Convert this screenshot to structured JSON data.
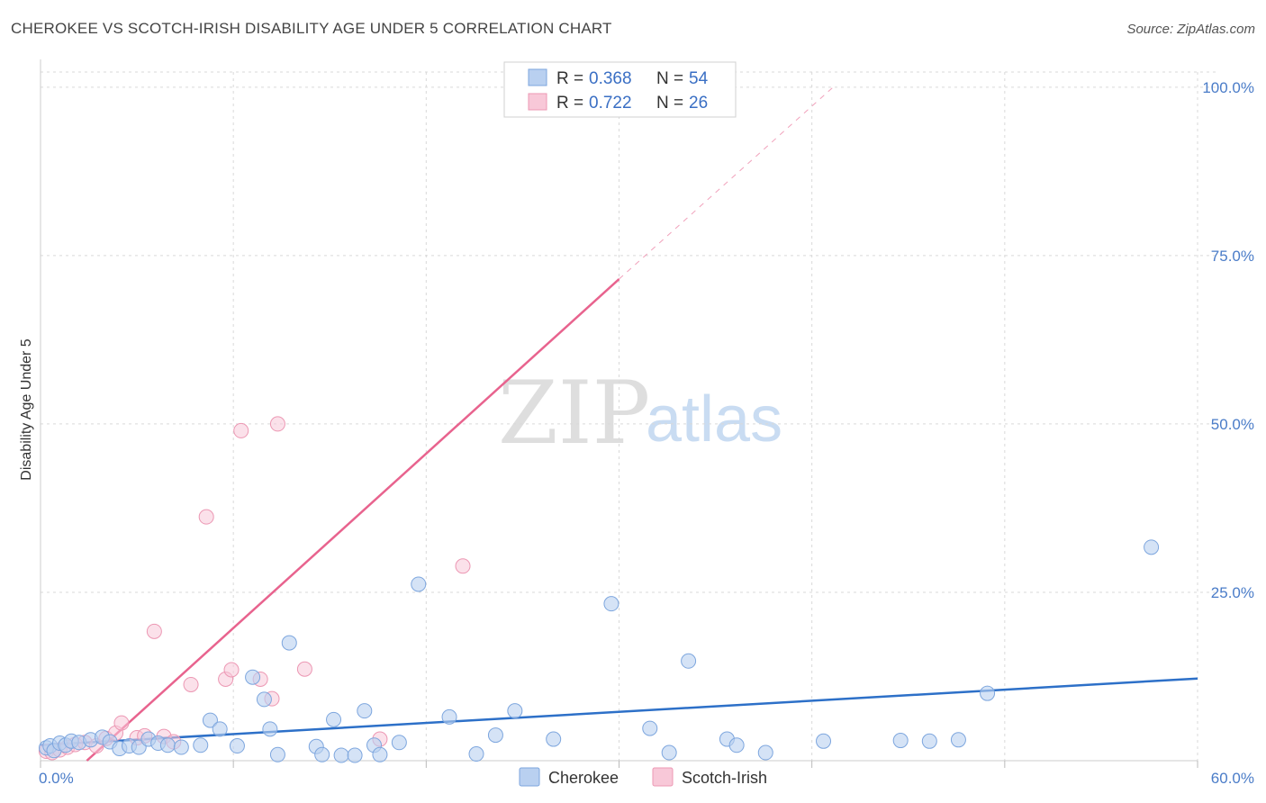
{
  "title": "CHEROKEE VS SCOTCH-IRISH DISABILITY AGE UNDER 5 CORRELATION CHART",
  "source": "Source: ZipAtlas.com",
  "watermark": {
    "zip": "ZIP",
    "atlas": "atlas"
  },
  "colors": {
    "cherokee_fill": "#b9d0f0",
    "cherokee_stroke": "#7da6de",
    "cherokee_line": "#2d70c8",
    "scotch_fill": "#f8c8d8",
    "scotch_stroke": "#ec97b3",
    "scotch_line": "#e8638e",
    "grid": "#d9d9d9",
    "axis_text": "#4a7cc8"
  },
  "legend": {
    "rows": [
      {
        "r_label": "R =",
        "r_value": "0.368",
        "n_label": "N =",
        "n_value": "54"
      },
      {
        "r_label": "R =",
        "r_value": "0.722",
        "n_label": "N =",
        "n_value": "26"
      }
    ]
  },
  "bottom_legend": {
    "cherokee": "Cherokee",
    "scotch": "Scotch-Irish"
  },
  "chart_data": {
    "type": "scatter",
    "title": "CHEROKEE VS SCOTCH-IRISH DISABILITY AGE UNDER 5 CORRELATION CHART",
    "xlabel": "",
    "ylabel": "Disability Age Under 5",
    "xlim": [
      0,
      60
    ],
    "ylim": [
      0,
      100
    ],
    "x_tick_labels": [
      "0.0%",
      "60.0%"
    ],
    "y_ticks": [
      25,
      50,
      75,
      100
    ],
    "y_tick_labels": [
      "25.0%",
      "50.0%",
      "75.0%",
      "100.0%"
    ],
    "grid": true,
    "series": [
      {
        "name": "Cherokee",
        "R": 0.368,
        "N": 54,
        "trend": {
          "x0": 0,
          "y0": 2.3,
          "x1": 60,
          "y1": 12.2
        },
        "points": [
          [
            0.3,
            1.9
          ],
          [
            0.5,
            2.2
          ],
          [
            0.7,
            1.5
          ],
          [
            1.0,
            2.6
          ],
          [
            1.3,
            2.3
          ],
          [
            1.6,
            2.9
          ],
          [
            2.0,
            2.7
          ],
          [
            2.6,
            3.1
          ],
          [
            3.2,
            3.5
          ],
          [
            3.6,
            2.8
          ],
          [
            4.1,
            1.8
          ],
          [
            4.6,
            2.2
          ],
          [
            5.1,
            2.0
          ],
          [
            5.6,
            3.2
          ],
          [
            6.1,
            2.6
          ],
          [
            6.6,
            2.3
          ],
          [
            7.3,
            2.0
          ],
          [
            8.3,
            2.3
          ],
          [
            8.8,
            6.0
          ],
          [
            9.3,
            4.7
          ],
          [
            10.2,
            2.2
          ],
          [
            11.0,
            12.4
          ],
          [
            11.6,
            9.1
          ],
          [
            11.9,
            4.7
          ],
          [
            12.3,
            0.9
          ],
          [
            12.9,
            17.5
          ],
          [
            14.3,
            2.1
          ],
          [
            14.6,
            0.9
          ],
          [
            15.2,
            6.1
          ],
          [
            15.6,
            0.8
          ],
          [
            16.3,
            0.8
          ],
          [
            16.8,
            7.4
          ],
          [
            17.3,
            2.3
          ],
          [
            17.6,
            0.9
          ],
          [
            18.6,
            2.7
          ],
          [
            19.6,
            26.2
          ],
          [
            21.2,
            6.5
          ],
          [
            22.6,
            1.0
          ],
          [
            23.6,
            3.8
          ],
          [
            24.6,
            7.4
          ],
          [
            26.6,
            3.2
          ],
          [
            29.6,
            23.3
          ],
          [
            31.6,
            4.8
          ],
          [
            32.6,
            1.2
          ],
          [
            33.6,
            14.8
          ],
          [
            35.6,
            3.2
          ],
          [
            36.1,
            2.3
          ],
          [
            37.6,
            1.2
          ],
          [
            40.6,
            2.9
          ],
          [
            44.6,
            3.0
          ],
          [
            46.1,
            2.9
          ],
          [
            47.6,
            3.1
          ],
          [
            49.1,
            10.0
          ],
          [
            57.6,
            31.7
          ]
        ]
      },
      {
        "name": "Scotch-Irish",
        "R": 0.722,
        "N": 26,
        "trend": {
          "x0": 2.4,
          "y0": 0,
          "x1": 30.0,
          "y1": 71.5,
          "dashed_to": {
            "x": 41.1,
            "y": 100
          }
        },
        "points": [
          [
            0.3,
            1.4
          ],
          [
            0.6,
            1.2
          ],
          [
            1.0,
            1.6
          ],
          [
            1.4,
            2.0
          ],
          [
            1.8,
            2.4
          ],
          [
            2.3,
            2.7
          ],
          [
            2.9,
            2.2
          ],
          [
            3.4,
            3.3
          ],
          [
            3.9,
            4.1
          ],
          [
            4.2,
            5.6
          ],
          [
            5.0,
            3.4
          ],
          [
            5.4,
            3.7
          ],
          [
            5.9,
            19.2
          ],
          [
            6.4,
            3.6
          ],
          [
            6.9,
            2.8
          ],
          [
            7.8,
            11.3
          ],
          [
            8.6,
            36.2
          ],
          [
            9.6,
            12.1
          ],
          [
            9.9,
            13.5
          ],
          [
            10.4,
            49.0
          ],
          [
            11.4,
            12.1
          ],
          [
            12.0,
            9.2
          ],
          [
            12.3,
            50.0
          ],
          [
            13.7,
            13.6
          ],
          [
            17.6,
            3.2
          ],
          [
            21.9,
            28.9
          ]
        ]
      }
    ]
  }
}
